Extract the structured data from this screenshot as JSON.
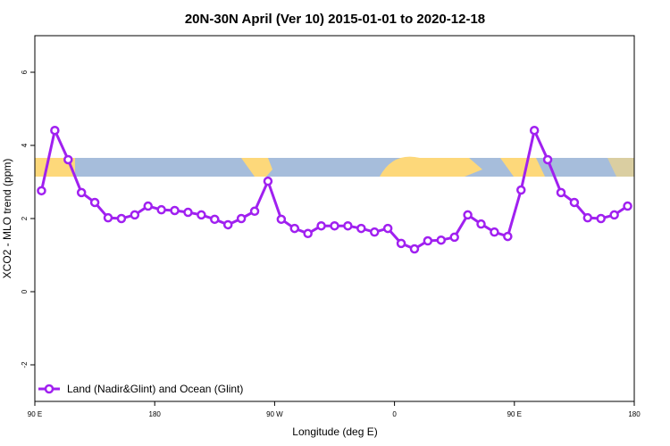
{
  "chart_data": {
    "type": "line",
    "title": "20N-30N April (Ver 10)   2015-01-01 to 2020-12-18",
    "x_label": "Longitude (deg E)",
    "y_label": "XCO2 - MLO trend (ppm)",
    "x": [
      95,
      105,
      115,
      125,
      135,
      145,
      155,
      165,
      175,
      185,
      195,
      205,
      215,
      225,
      235,
      245,
      255,
      265,
      275,
      285,
      295,
      305,
      315,
      325,
      335,
      345,
      355,
      365,
      375,
      385,
      395,
      405,
      415,
      425,
      435,
      445,
      455,
      465,
      475,
      485,
      495,
      505,
      515,
      525,
      535
    ],
    "series": [
      {
        "name": "Land (Nadir&Glint) and Ocean (Glint)",
        "color": "#a020f0",
        "values": [
          2.76,
          4.41,
          3.61,
          2.71,
          2.44,
          2.02,
          2.0,
          2.1,
          2.34,
          2.24,
          2.22,
          2.17,
          2.1,
          1.98,
          1.83,
          2.0,
          2.2,
          3.02,
          1.98,
          1.73,
          1.59,
          1.8,
          1.8,
          1.8,
          1.73,
          1.63,
          1.73,
          1.32,
          1.17,
          1.39,
          1.41,
          1.49,
          2.1,
          1.85,
          1.63,
          1.51,
          2.78,
          4.41,
          3.61,
          2.71,
          2.44,
          2.02,
          2.0,
          2.1,
          2.34
        ]
      }
    ],
    "xlim": [
      90,
      540
    ],
    "xticks": [
      {
        "value": 90,
        "label": "90 E"
      },
      180,
      {
        "value": 270,
        "label": "90 W"
      },
      {
        "value": 360,
        "label": "0"
      },
      {
        "value": 450,
        "label": "90 E"
      },
      {
        "value": 540,
        "label": "180"
      }
    ],
    "ylim": [
      -3,
      7
    ],
    "yticks": [
      -2,
      0,
      2,
      4,
      6
    ],
    "legend": "bottom-left"
  }
}
